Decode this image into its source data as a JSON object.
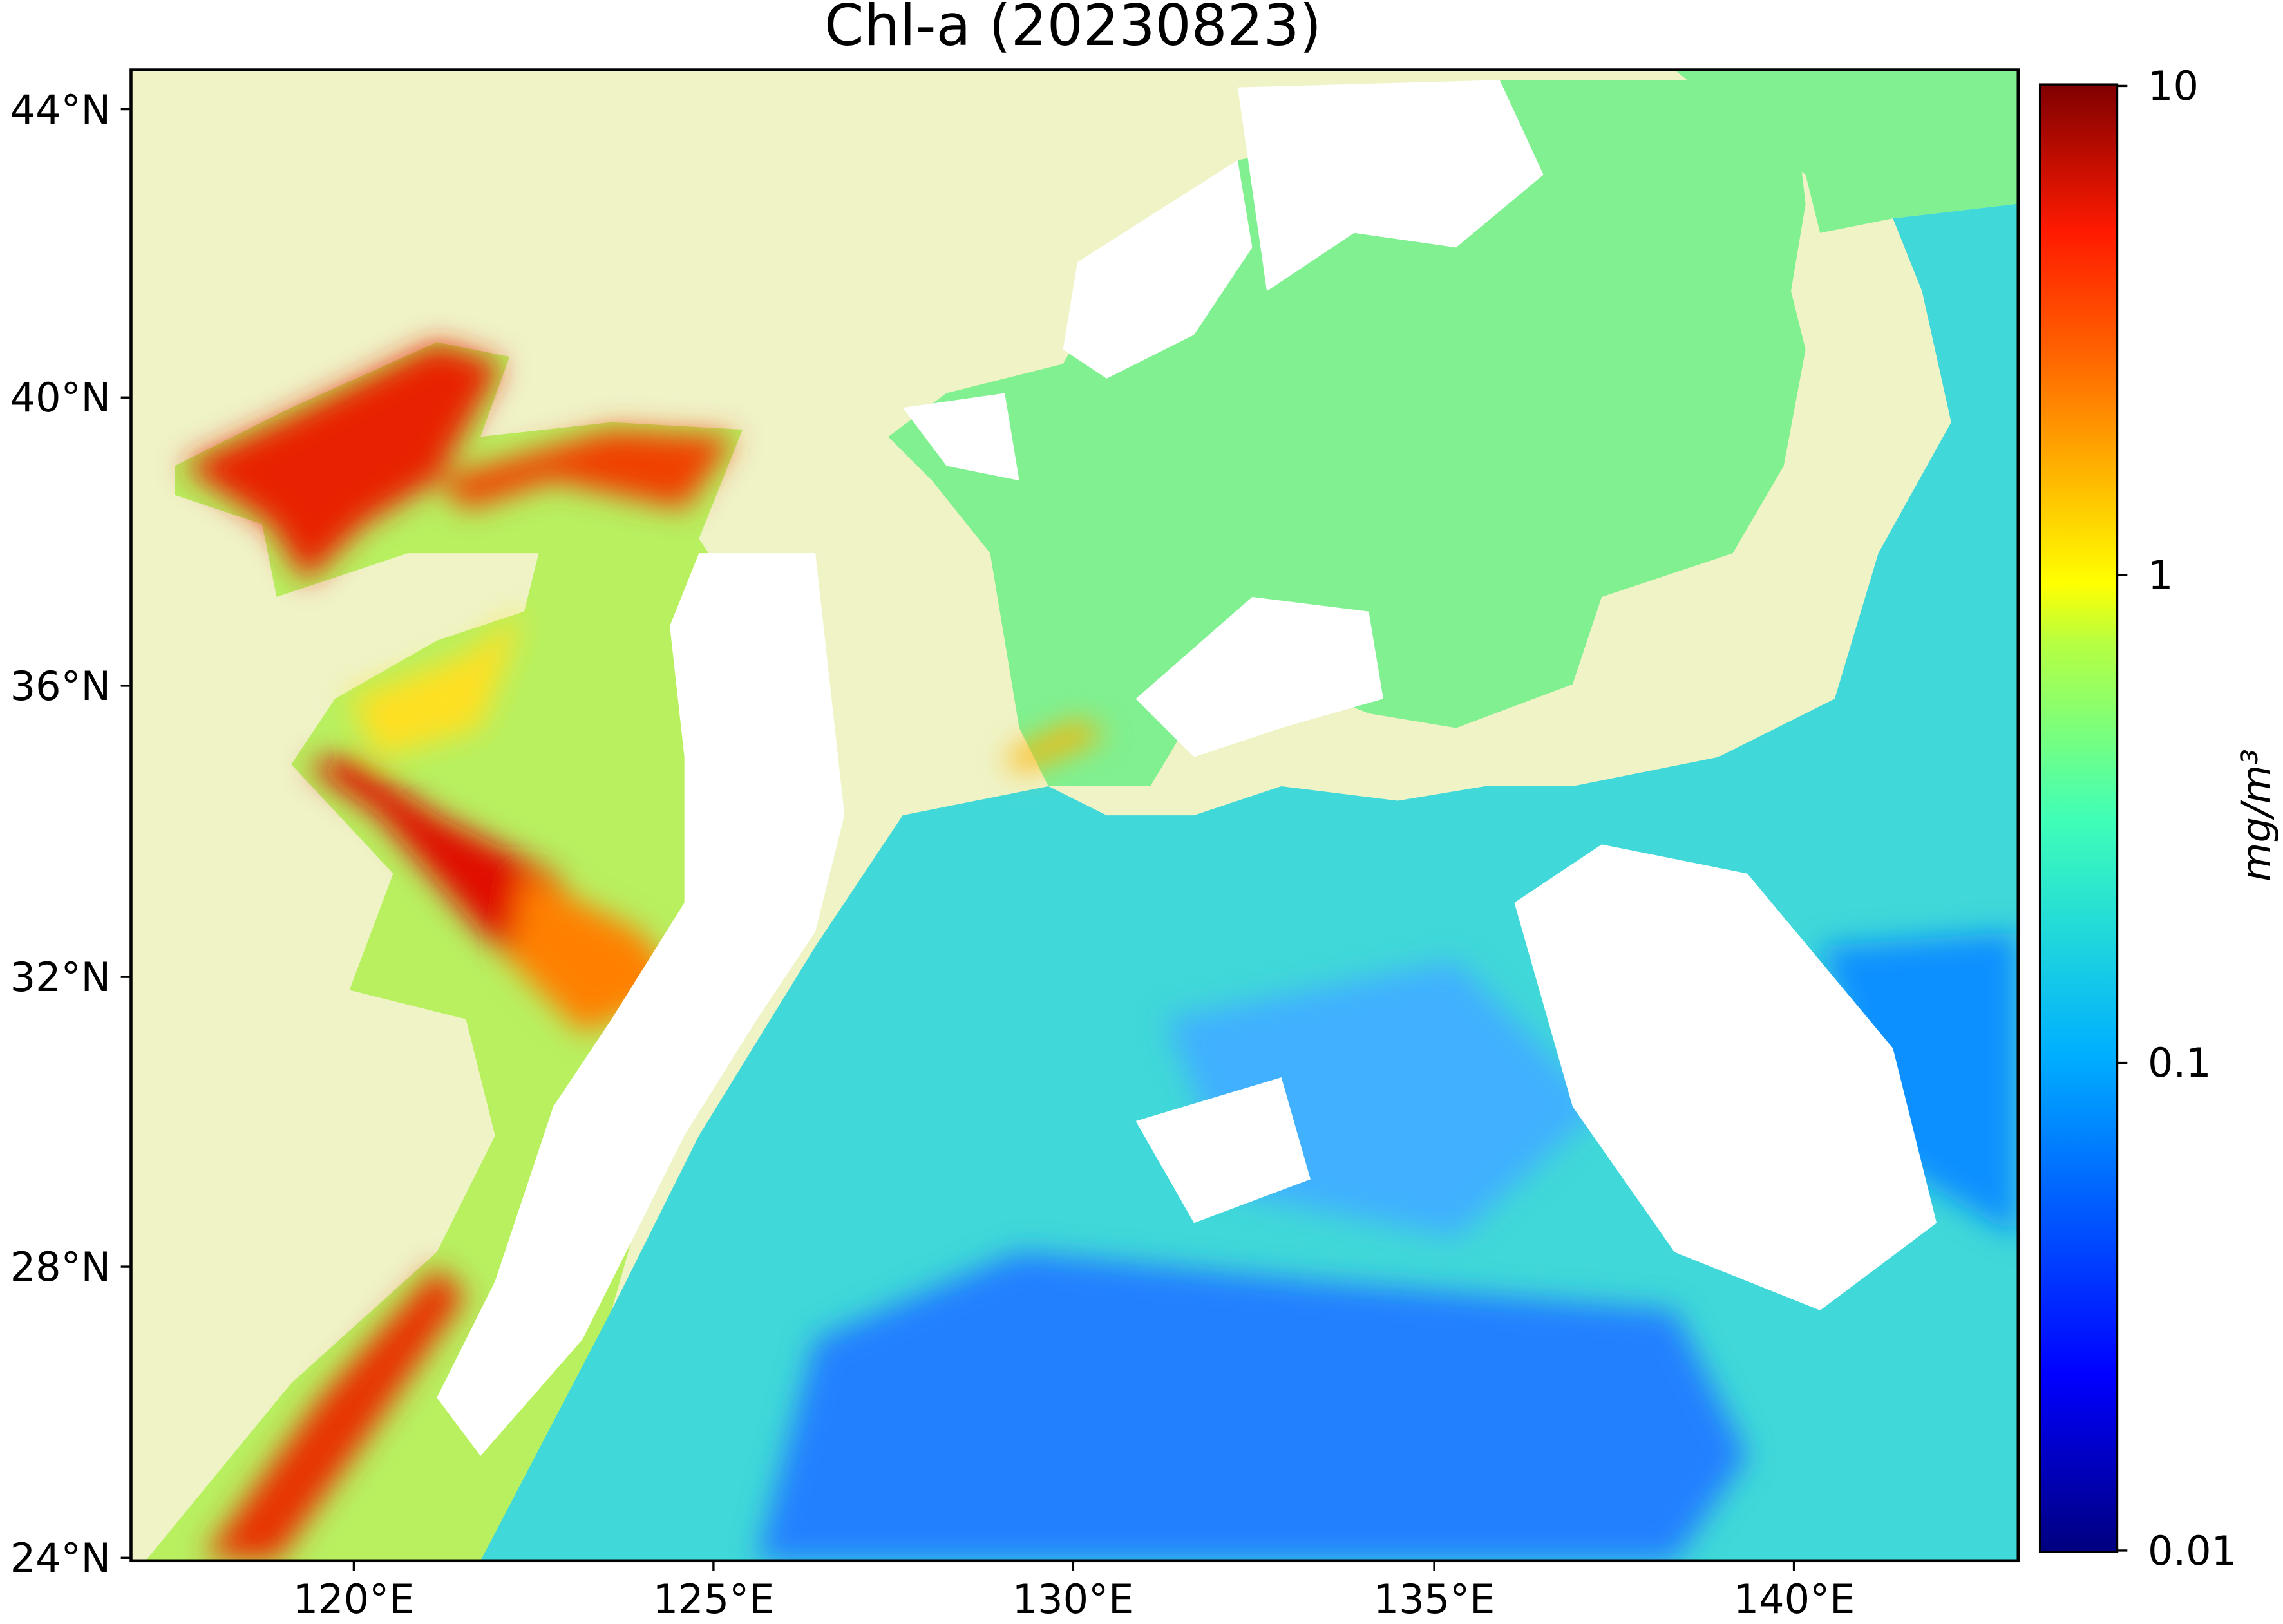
{
  "title": "Chl-a (20230823)",
  "x_ticks": [
    "120°E",
    "125°E",
    "130°E",
    "135°E",
    "140°E"
  ],
  "y_ticks": [
    "44°N",
    "40°N",
    "36°N",
    "32°N",
    "28°N",
    "24°N"
  ],
  "colorbar": {
    "ticks": [
      "10",
      "1",
      "0.1",
      "0.01"
    ],
    "label": "mg/m³"
  }
}
